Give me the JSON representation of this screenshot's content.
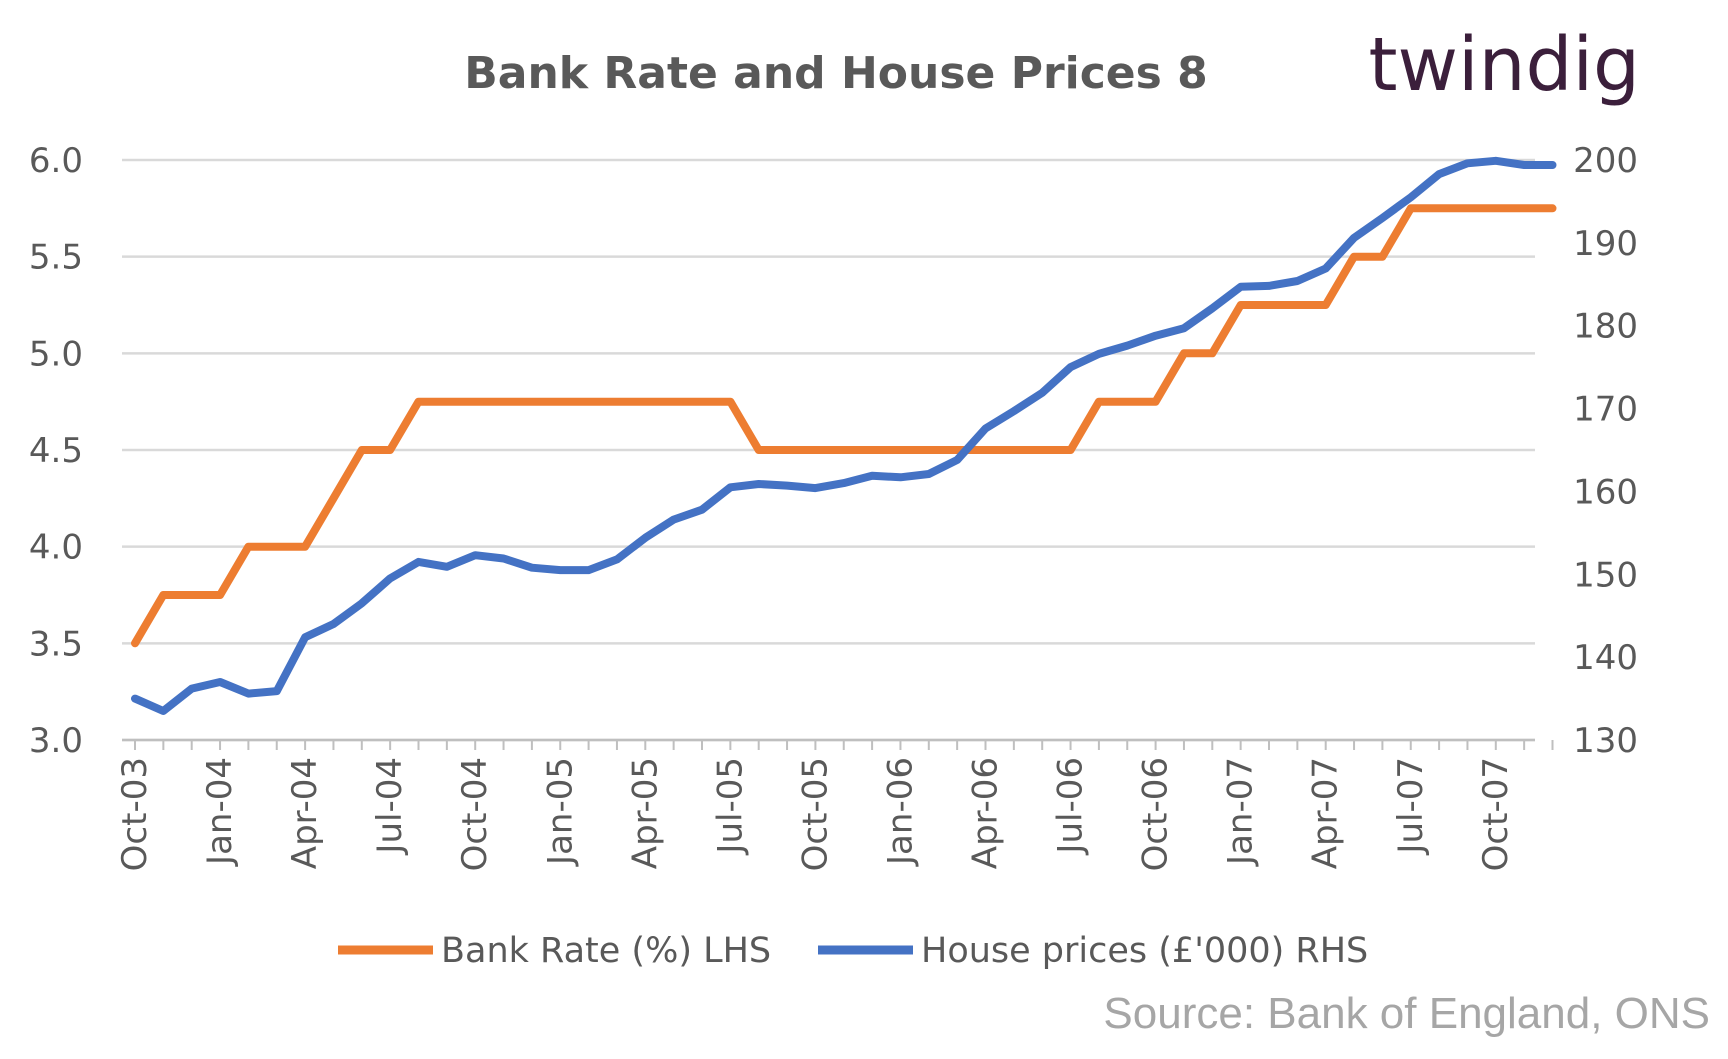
{
  "chart_data": {
    "type": "line",
    "title": "Bank Rate and House Prices 8",
    "source": "Source: Bank of England, ONS",
    "logo_text": "twindig",
    "grid": true,
    "legend_position": "bottom",
    "x_tick_labels": [
      "Oct-03",
      "Jan-04",
      "Apr-04",
      "Jul-04",
      "Oct-04",
      "Jan-05",
      "Apr-05",
      "Jul-05",
      "Oct-05",
      "Jan-06",
      "Apr-06",
      "Jul-06",
      "Oct-06",
      "Jan-07",
      "Apr-07",
      "Jul-07",
      "Oct-07"
    ],
    "x": [
      "Oct-03",
      "Nov-03",
      "Dec-03",
      "Jan-04",
      "Feb-04",
      "Mar-04",
      "Apr-04",
      "May-04",
      "Jun-04",
      "Jul-04",
      "Aug-04",
      "Sep-04",
      "Oct-04",
      "Nov-04",
      "Dec-04",
      "Jan-05",
      "Feb-05",
      "Mar-05",
      "Apr-05",
      "May-05",
      "Jun-05",
      "Jul-05",
      "Aug-05",
      "Sep-05",
      "Oct-05",
      "Nov-05",
      "Dec-05",
      "Jan-06",
      "Feb-06",
      "Mar-06",
      "Apr-06",
      "May-06",
      "Jun-06",
      "Jul-06",
      "Aug-06",
      "Sep-06",
      "Oct-06",
      "Nov-06",
      "Dec-06",
      "Jan-07",
      "Feb-07",
      "Mar-07",
      "Apr-07",
      "May-07",
      "Jun-07",
      "Jul-07",
      "Aug-07",
      "Sep-07",
      "Oct-07",
      "Nov-07",
      "Dec-07"
    ],
    "y_left": {
      "ticks": [
        "6.0",
        "5.5",
        "5.0",
        "4.5",
        "4.0",
        "3.5",
        "3.0"
      ],
      "ylim": [
        3.0,
        6.0
      ]
    },
    "y_right": {
      "ticks": [
        "200",
        "190",
        "180",
        "170",
        "160",
        "150",
        "140",
        "130"
      ],
      "ylim": [
        130,
        200
      ]
    },
    "series": [
      {
        "name": "Bank Rate (%) LHS",
        "axis": "left",
        "color": "#ed7d31",
        "values": [
          3.5,
          3.75,
          3.75,
          3.75,
          4.0,
          4.0,
          4.0,
          4.25,
          4.5,
          4.5,
          4.75,
          4.75,
          4.75,
          4.75,
          4.75,
          4.75,
          4.75,
          4.75,
          4.75,
          4.75,
          4.75,
          4.75,
          4.5,
          4.5,
          4.5,
          4.5,
          4.5,
          4.5,
          4.5,
          4.5,
          4.5,
          4.5,
          4.5,
          4.5,
          4.75,
          4.75,
          4.75,
          5.0,
          5.0,
          5.25,
          5.25,
          5.25,
          5.25,
          5.5,
          5.5,
          5.75,
          5.75,
          5.75,
          5.75,
          5.75,
          5.75
        ]
      },
      {
        "name": "House prices (£'000) RHS",
        "axis": "right",
        "color": "#4472c4",
        "values": [
          135.0,
          133.5,
          136.2,
          137.0,
          135.6,
          135.9,
          142.4,
          144.0,
          146.5,
          149.5,
          151.5,
          150.9,
          152.3,
          151.9,
          150.8,
          150.5,
          150.5,
          151.8,
          154.4,
          156.6,
          157.8,
          160.5,
          160.9,
          160.7,
          160.4,
          161.0,
          161.9,
          161.7,
          162.1,
          163.8,
          167.6,
          169.7,
          171.9,
          175.0,
          176.6,
          177.6,
          178.8,
          179.7,
          182.1,
          184.7,
          184.8,
          185.4,
          186.9,
          190.6,
          193.0,
          195.5,
          198.3,
          199.6,
          199.9,
          199.4,
          199.4
        ]
      }
    ]
  }
}
